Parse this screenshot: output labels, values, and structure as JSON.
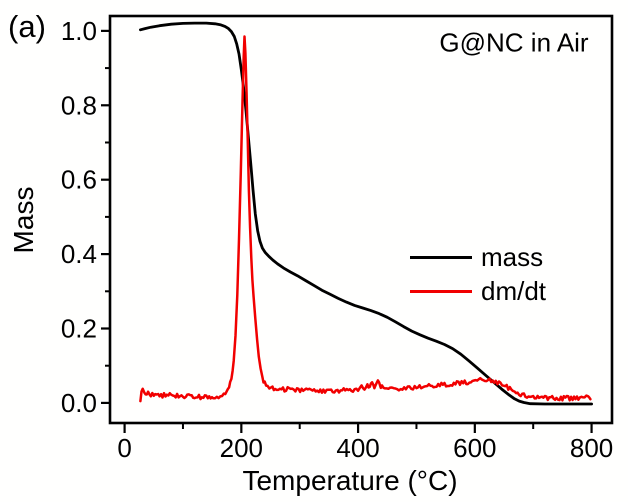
{
  "figure": {
    "panel_label": "(a)",
    "annotation": "G@NC in Air",
    "background": "#ffffff",
    "text_color": "#000000"
  },
  "chart_data": {
    "type": "line",
    "title": "",
    "xlabel": "Temperature (°C)",
    "ylabel": "Mass",
    "xlim": [
      -25,
      835
    ],
    "ylim": [
      -0.054,
      1.04
    ],
    "grid": false,
    "x_ticks": [
      {
        "value": 0,
        "label": "0"
      },
      {
        "value": 200,
        "label": "200"
      },
      {
        "value": 400,
        "label": "400"
      },
      {
        "value": 600,
        "label": "600"
      },
      {
        "value": 800,
        "label": "800"
      }
    ],
    "x_minor_ticks": [
      100,
      300,
      500,
      700
    ],
    "y_ticks": [
      {
        "value": 0.0,
        "label": "0.0"
      },
      {
        "value": 0.2,
        "label": "0.2"
      },
      {
        "value": 0.4,
        "label": "0.4"
      },
      {
        "value": 0.6,
        "label": "0.6"
      },
      {
        "value": 0.8,
        "label": "0.8"
      },
      {
        "value": 1.0,
        "label": "1.0"
      }
    ],
    "y_minor_ticks": [
      0.1,
      0.3,
      0.5,
      0.7,
      0.9
    ],
    "legend": {
      "position": "middle-right",
      "entries": [
        {
          "label": "mass",
          "color": "#000000"
        },
        {
          "label": "dm/dt",
          "color": "#f10000"
        }
      ]
    },
    "series": [
      {
        "name": "mass",
        "color": "#000000",
        "width": 2.8,
        "noise": 0,
        "points": [
          [
            27,
            1.003
          ],
          [
            35,
            1.006
          ],
          [
            45,
            1.01
          ],
          [
            60,
            1.014
          ],
          [
            80,
            1.018
          ],
          [
            100,
            1.02
          ],
          [
            120,
            1.021
          ],
          [
            140,
            1.021
          ],
          [
            155,
            1.019
          ],
          [
            165,
            1.016
          ],
          [
            172,
            1.012
          ],
          [
            178,
            1.006
          ],
          [
            183,
            0.998
          ],
          [
            188,
            0.985
          ],
          [
            192,
            0.965
          ],
          [
            196,
            0.938
          ],
          [
            200,
            0.896
          ],
          [
            204,
            0.845
          ],
          [
            208,
            0.785
          ],
          [
            212,
            0.716
          ],
          [
            216,
            0.645
          ],
          [
            220,
            0.573
          ],
          [
            224,
            0.508
          ],
          [
            228,
            0.462
          ],
          [
            232,
            0.434
          ],
          [
            236,
            0.416
          ],
          [
            241,
            0.404
          ],
          [
            247,
            0.394
          ],
          [
            254,
            0.384
          ],
          [
            262,
            0.374
          ],
          [
            272,
            0.363
          ],
          [
            284,
            0.352
          ],
          [
            296,
            0.342
          ],
          [
            310,
            0.329
          ],
          [
            324,
            0.316
          ],
          [
            338,
            0.303
          ],
          [
            352,
            0.292
          ],
          [
            366,
            0.281
          ],
          [
            380,
            0.271
          ],
          [
            394,
            0.262
          ],
          [
            408,
            0.255
          ],
          [
            422,
            0.248
          ],
          [
            436,
            0.24
          ],
          [
            450,
            0.23
          ],
          [
            464,
            0.218
          ],
          [
            478,
            0.205
          ],
          [
            492,
            0.193
          ],
          [
            506,
            0.183
          ],
          [
            520,
            0.174
          ],
          [
            534,
            0.166
          ],
          [
            548,
            0.157
          ],
          [
            562,
            0.146
          ],
          [
            576,
            0.131
          ],
          [
            590,
            0.113
          ],
          [
            604,
            0.094
          ],
          [
            618,
            0.075
          ],
          [
            632,
            0.056
          ],
          [
            646,
            0.037
          ],
          [
            658,
            0.022
          ],
          [
            668,
            0.011
          ],
          [
            676,
            0.005
          ],
          [
            684,
            0.001
          ],
          [
            695,
            -0.002
          ],
          [
            720,
            -0.003
          ],
          [
            750,
            -0.003
          ],
          [
            780,
            -0.003
          ],
          [
            800,
            -0.003
          ]
        ]
      },
      {
        "name": "dm/dt",
        "color": "#f10000",
        "width": 2.5,
        "noise": 0.006,
        "points": [
          [
            27,
            0.004
          ],
          [
            29,
            0.03
          ],
          [
            31,
            0.036
          ],
          [
            34,
            0.024
          ],
          [
            38,
            0.028
          ],
          [
            45,
            0.022
          ],
          [
            55,
            0.024
          ],
          [
            65,
            0.02
          ],
          [
            75,
            0.022
          ],
          [
            85,
            0.018
          ],
          [
            95,
            0.02
          ],
          [
            105,
            0.016
          ],
          [
            115,
            0.018
          ],
          [
            125,
            0.016
          ],
          [
            135,
            0.015
          ],
          [
            145,
            0.013
          ],
          [
            152,
            0.012
          ],
          [
            158,
            0.013
          ],
          [
            164,
            0.015
          ],
          [
            170,
            0.02
          ],
          [
            175,
            0.028
          ],
          [
            179,
            0.042
          ],
          [
            183,
            0.066
          ],
          [
            187,
            0.11
          ],
          [
            190,
            0.18
          ],
          [
            193,
            0.29
          ],
          [
            196,
            0.44
          ],
          [
            199,
            0.62
          ],
          [
            202,
            0.81
          ],
          [
            204,
            0.93
          ],
          [
            205.5,
            0.985
          ],
          [
            207,
            0.94
          ],
          [
            209,
            0.83
          ],
          [
            211,
            0.7
          ],
          [
            213,
            0.57
          ],
          [
            215,
            0.47
          ],
          [
            217,
            0.39
          ],
          [
            219,
            0.33
          ],
          [
            221,
            0.285
          ],
          [
            224,
            0.225
          ],
          [
            227,
            0.17
          ],
          [
            230,
            0.123
          ],
          [
            233,
            0.09
          ],
          [
            236,
            0.068
          ],
          [
            240,
            0.052
          ],
          [
            245,
            0.044
          ],
          [
            251,
            0.04
          ],
          [
            258,
            0.037
          ],
          [
            266,
            0.039
          ],
          [
            274,
            0.035
          ],
          [
            282,
            0.037
          ],
          [
            290,
            0.033
          ],
          [
            298,
            0.035
          ],
          [
            306,
            0.032
          ],
          [
            314,
            0.034
          ],
          [
            322,
            0.03
          ],
          [
            330,
            0.033
          ],
          [
            338,
            0.03
          ],
          [
            346,
            0.034
          ],
          [
            354,
            0.031
          ],
          [
            362,
            0.034
          ],
          [
            370,
            0.032
          ],
          [
            378,
            0.035
          ],
          [
            386,
            0.033
          ],
          [
            394,
            0.037
          ],
          [
            400,
            0.034
          ],
          [
            406,
            0.042
          ],
          [
            411,
            0.036
          ],
          [
            416,
            0.052
          ],
          [
            420,
            0.038
          ],
          [
            424,
            0.056
          ],
          [
            428,
            0.042
          ],
          [
            432,
            0.05
          ],
          [
            436,
            0.06
          ],
          [
            439,
            0.04
          ],
          [
            441,
            0.046
          ],
          [
            446,
            0.036
          ],
          [
            452,
            0.04
          ],
          [
            458,
            0.036
          ],
          [
            464,
            0.04
          ],
          [
            470,
            0.037
          ],
          [
            476,
            0.041
          ],
          [
            482,
            0.038
          ],
          [
            488,
            0.042
          ],
          [
            494,
            0.04
          ],
          [
            500,
            0.044
          ],
          [
            508,
            0.042
          ],
          [
            516,
            0.046
          ],
          [
            524,
            0.044
          ],
          [
            532,
            0.048
          ],
          [
            540,
            0.047
          ],
          [
            548,
            0.051
          ],
          [
            556,
            0.049
          ],
          [
            564,
            0.053
          ],
          [
            572,
            0.052
          ],
          [
            580,
            0.056
          ],
          [
            588,
            0.054
          ],
          [
            596,
            0.058
          ],
          [
            604,
            0.06
          ],
          [
            612,
            0.063
          ],
          [
            620,
            0.058
          ],
          [
            628,
            0.061
          ],
          [
            636,
            0.057
          ],
          [
            644,
            0.052
          ],
          [
            652,
            0.046
          ],
          [
            660,
            0.038
          ],
          [
            668,
            0.03
          ],
          [
            676,
            0.024
          ],
          [
            684,
            0.02
          ],
          [
            692,
            0.017
          ],
          [
            700,
            0.015
          ],
          [
            710,
            0.013
          ],
          [
            720,
            0.015
          ],
          [
            730,
            0.012
          ],
          [
            740,
            0.014
          ],
          [
            750,
            0.012
          ],
          [
            760,
            0.013
          ],
          [
            770,
            0.012
          ],
          [
            780,
            0.014
          ],
          [
            788,
            0.012
          ],
          [
            794,
            0.022
          ],
          [
            798,
            0.01
          ]
        ]
      }
    ]
  }
}
